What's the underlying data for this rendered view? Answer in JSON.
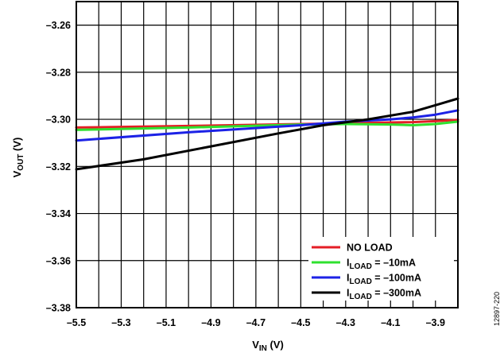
{
  "chart_data": {
    "type": "line",
    "xlabel": {
      "main": "V",
      "sub": "IN",
      "unit": " (V)"
    },
    "ylabel": {
      "main": "V",
      "sub": "OUT",
      "unit": " (V)"
    },
    "xlim": [
      -5.5,
      -3.8
    ],
    "ylim": [
      -3.38,
      -3.25
    ],
    "x_ticks": [
      -5.5,
      -5.3,
      -5.1,
      -4.9,
      -4.7,
      -4.5,
      -4.3,
      -4.1,
      -3.9
    ],
    "x_tick_labels": [
      "–5.5",
      "–5.3",
      "–5.1",
      "–4.9",
      "–4.7",
      "–4.5",
      "–4.3",
      "–4.1",
      "–3.9"
    ],
    "y_ticks": [
      -3.26,
      -3.28,
      -3.3,
      -3.32,
      -3.34,
      -3.36,
      -3.38
    ],
    "y_tick_labels": [
      "–3.26",
      "–3.28",
      "–3.30",
      "–3.32",
      "–3.34",
      "–3.36",
      "–3.38"
    ],
    "x_grid_step": 0.1,
    "grid": true,
    "legend_position": "bottom-right",
    "series": [
      {
        "label_main": "NO LOAD",
        "label_sub": "",
        "label_rest": "",
        "color": "#e41e26",
        "x": [
          -5.5,
          -5.0,
          -4.5,
          -4.2,
          -4.0,
          -3.9,
          -3.8
        ],
        "y": [
          -3.3035,
          -3.3028,
          -3.302,
          -3.3015,
          -3.3012,
          -3.3008,
          -3.3002
        ]
      },
      {
        "label_main": "I",
        "label_sub": "LOAD",
        "label_rest": " = –10mA",
        "color": "#2fe02f",
        "x": [
          -5.5,
          -5.0,
          -4.5,
          -4.3,
          -4.1,
          -4.0,
          -3.9,
          -3.8
        ],
        "y": [
          -3.3045,
          -3.3035,
          -3.3022,
          -3.302,
          -3.3022,
          -3.3025,
          -3.302,
          -3.301
        ]
      },
      {
        "label_main": "I",
        "label_sub": "LOAD",
        "label_rest": " = –100mA",
        "color": "#1c22e6",
        "x": [
          -5.5,
          -5.0,
          -4.5,
          -4.3,
          -4.1,
          -4.0,
          -3.9,
          -3.8
        ],
        "y": [
          -3.309,
          -3.3055,
          -3.3025,
          -3.301,
          -3.3,
          -3.2992,
          -3.298,
          -3.2962
        ]
      },
      {
        "label_main": "I",
        "label_sub": "LOAD",
        "label_rest": " = –300mA",
        "color": "#000000",
        "x": [
          -5.5,
          -5.2,
          -4.9,
          -4.6,
          -4.4,
          -4.2,
          -4.0,
          -3.9,
          -3.8
        ],
        "y": [
          -3.3212,
          -3.317,
          -3.3115,
          -3.306,
          -3.3025,
          -3.3,
          -3.2968,
          -3.294,
          -3.2912
        ]
      }
    ]
  },
  "figure_code": "12897-220"
}
